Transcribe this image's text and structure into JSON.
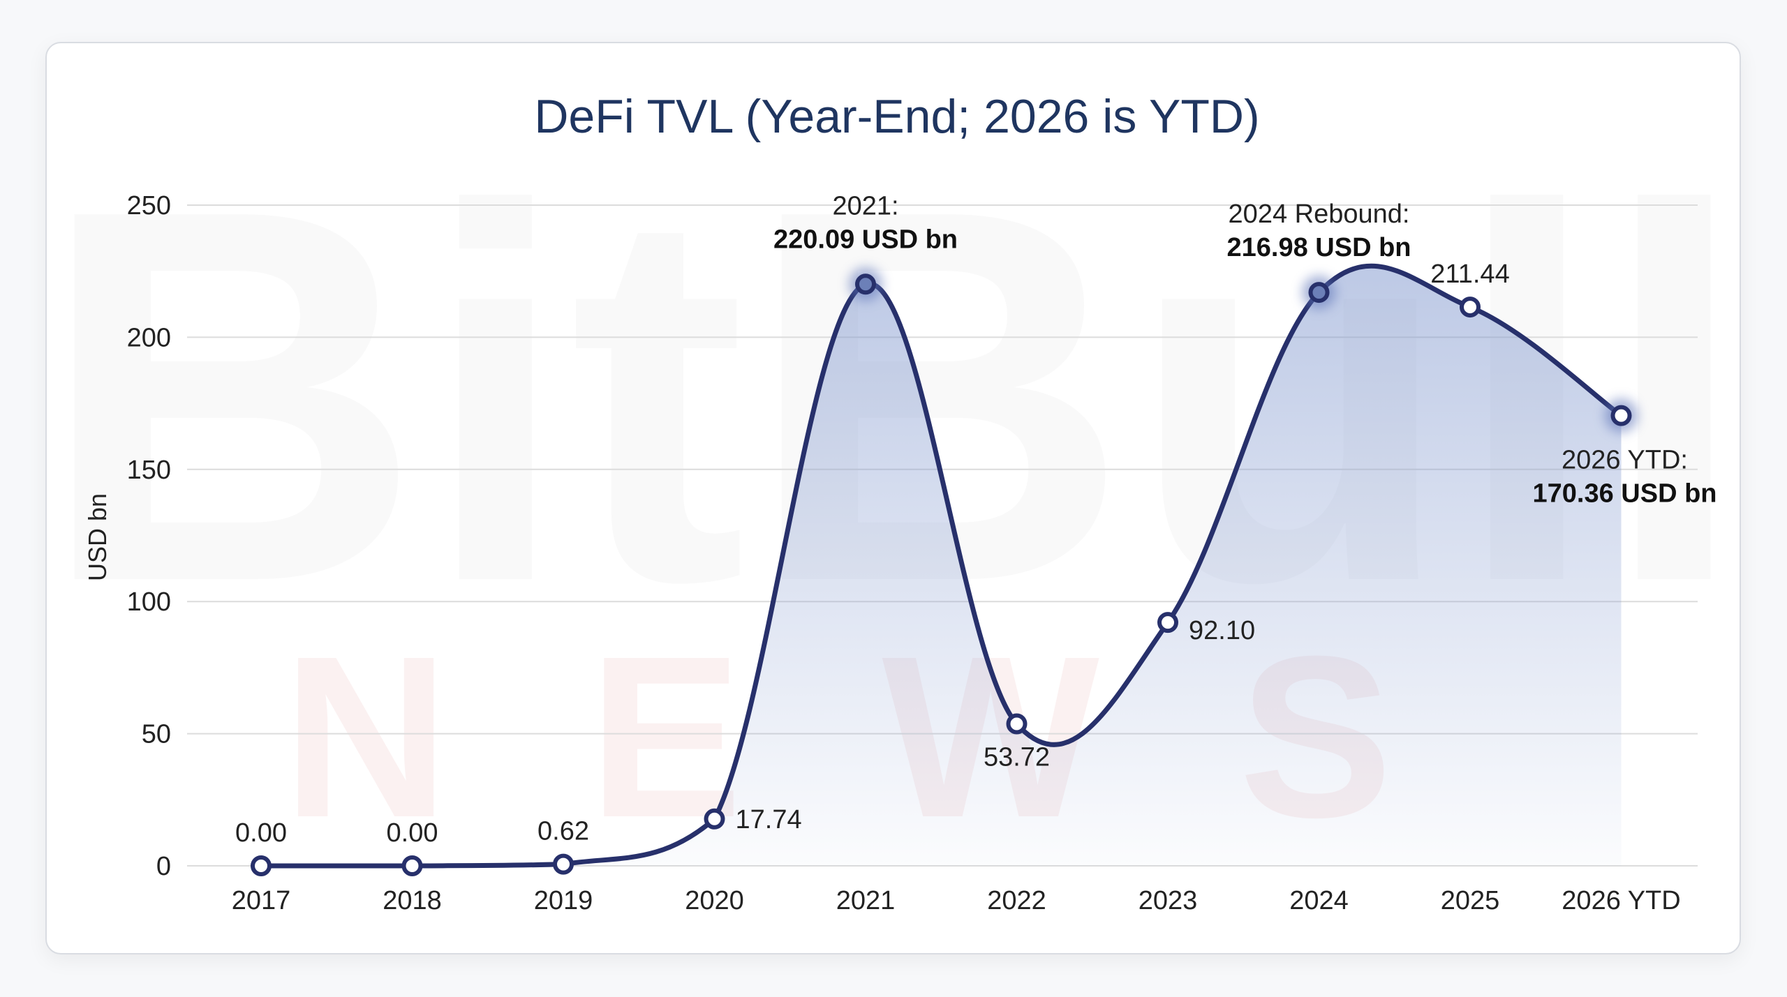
{
  "watermark": {
    "line1": "BitBull",
    "line2": "NEWS"
  },
  "colors": {
    "line": "#27306b",
    "fill": "#7b93cc",
    "title": "#1f3560",
    "grid": "#dcdcdc",
    "highlight_marker": "#6c80b8",
    "watermark_red": "#f3d6d6"
  },
  "chart_data": {
    "type": "line",
    "title": "DeFi TVL (Year-End; 2026 is YTD)",
    "xlabel": "",
    "ylabel": "USD bn",
    "categories": [
      "2017",
      "2018",
      "2019",
      "2020",
      "2021",
      "2022",
      "2023",
      "2024",
      "2025",
      "2026 YTD"
    ],
    "values": [
      0.0,
      0.0,
      0.62,
      17.74,
      220.09,
      53.72,
      92.1,
      216.98,
      211.44,
      170.36
    ],
    "ylim": [
      0,
      250
    ],
    "yticks": [
      0,
      50,
      100,
      150,
      200,
      250
    ],
    "grid": true,
    "area_fill": true,
    "smooth": true,
    "data_labels": [
      "0.00",
      "0.00",
      "0.62",
      "17.74",
      "220.09 USD bn",
      "53.72",
      "92.10",
      "216.98 USD bn",
      "211.44",
      "170.36 USD bn"
    ],
    "annotations": [
      {
        "index": 4,
        "title": "2021:",
        "value": "220.09 USD bn"
      },
      {
        "index": 7,
        "title": "2024 Rebound:",
        "value": "216.98 USD bn"
      },
      {
        "index": 9,
        "title": "2026 YTD:",
        "value": "170.36 USD bn"
      }
    ],
    "highlighted": [
      4,
      7,
      9
    ]
  }
}
